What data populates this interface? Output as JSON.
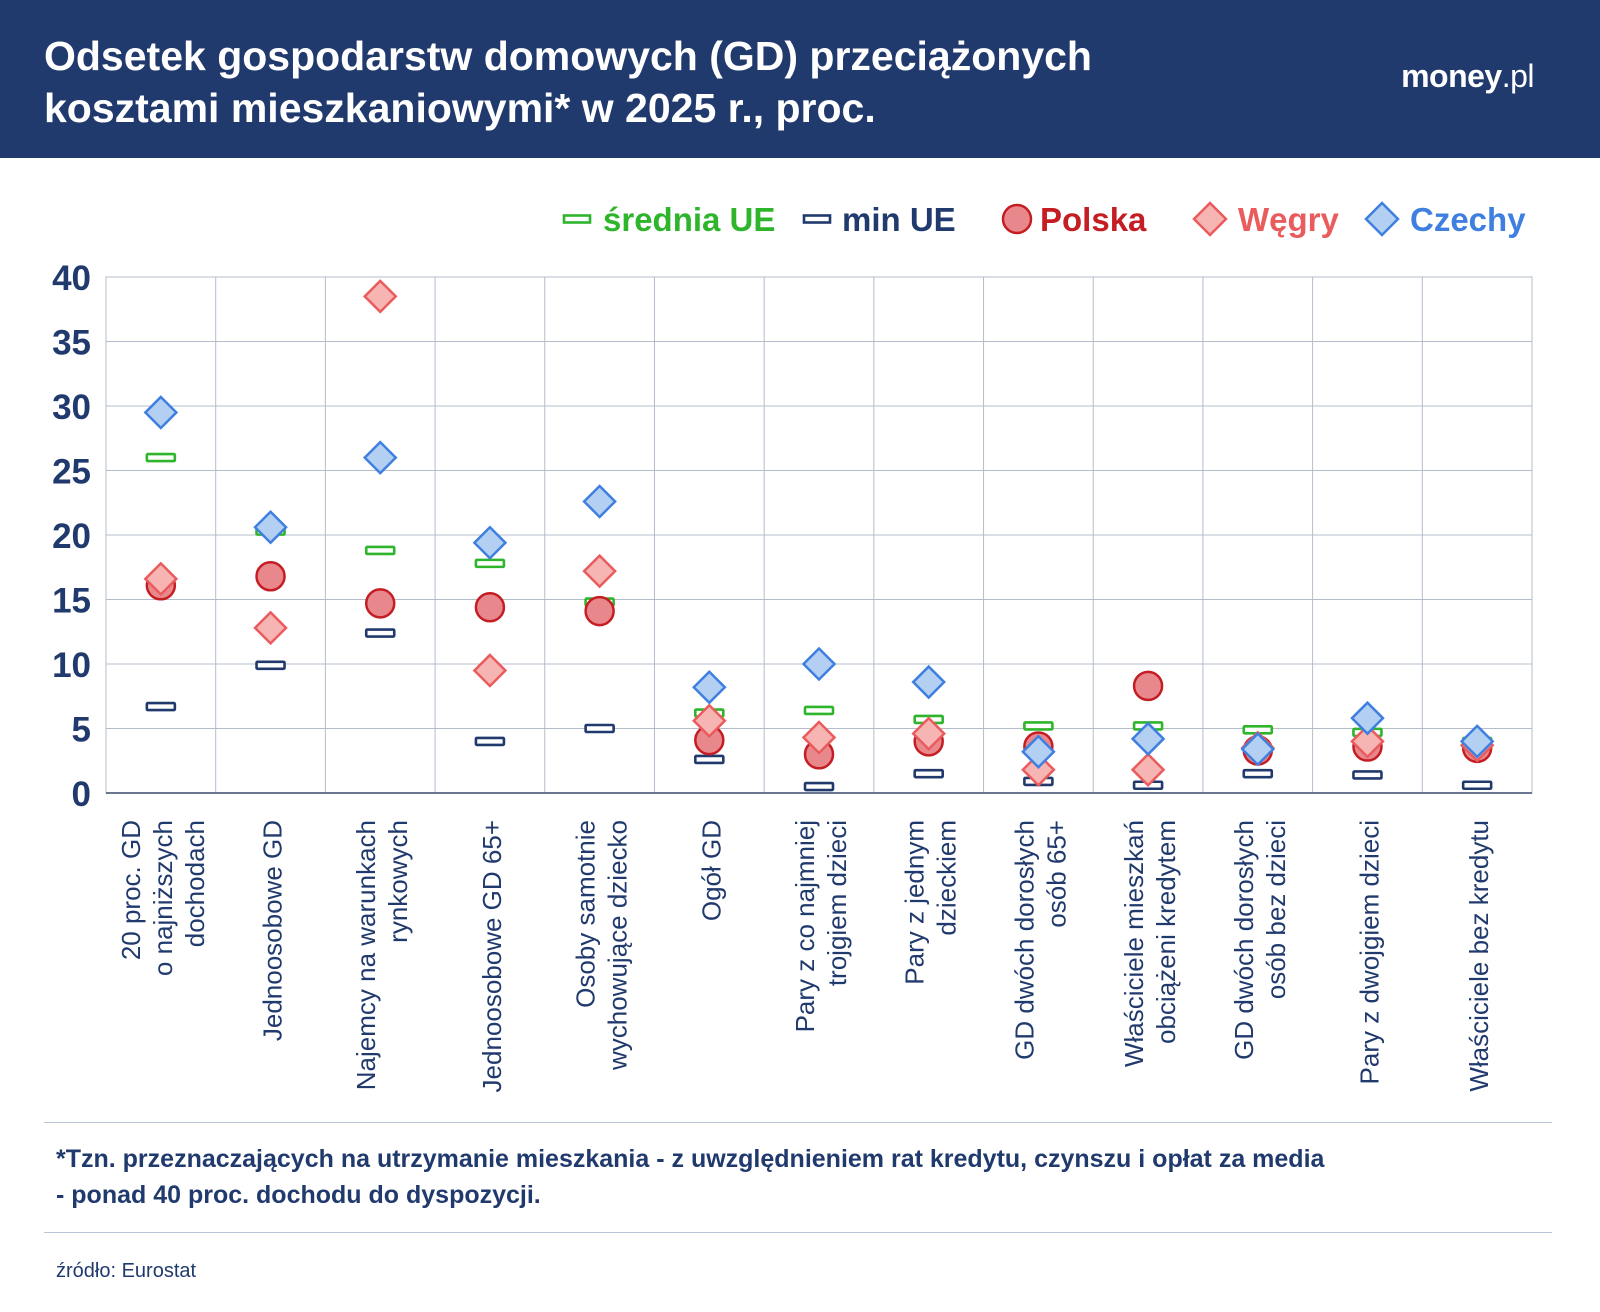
{
  "header": {
    "title_line1": "Odsetek gospodarstw domowych (GD) przeciążonych",
    "title_line2": "kosztami mieszkaniowymi* w 2025 r., proc.",
    "brand_bold": "money",
    "brand_light": ".pl"
  },
  "footnote": {
    "line1": "*Tzn. przeznaczających na utrzymanie mieszkania - z uwzględnieniem rat kredytu, czynszu i opłat za media",
    "line2": "- ponad 40 proc. dochodu do dyspozycji."
  },
  "source": "źródło: Eurostat",
  "colors": {
    "header_bg": "#213a6e",
    "axis_text": "#213a6e",
    "grid": "#b5bccb",
    "avg_eu": "#2fb52b",
    "min_eu": "#213a6e",
    "poland_fill": "#e8888d",
    "poland_stroke": "#c41e24",
    "hungary_fill": "#f6b4b2",
    "hungary_stroke": "#ea5b5d",
    "czechia_fill": "#b3d0f3",
    "czechia_stroke": "#3f7fe0"
  },
  "chart_data": {
    "type": "scatter",
    "title": "Odsetek gospodarstw domowych (GD) przeciążonych kosztami mieszkaniowymi* w 2025 r., proc.",
    "ylim": [
      0,
      40
    ],
    "yticks": [
      0,
      5,
      10,
      15,
      20,
      25,
      30,
      35,
      40
    ],
    "grid": true,
    "legend_position": "top-right",
    "categories": [
      [
        "20 proc. GD",
        "o najniższych",
        "dochodach"
      ],
      [
        "Jednoosobowe GD"
      ],
      [
        "Najemcy na warunkach",
        "rynkowych"
      ],
      [
        "Jednoosobowe GD 65+"
      ],
      [
        "Osoby samotnie",
        "wychowujące dziecko"
      ],
      [
        "Ogół GD"
      ],
      [
        "Pary z co najmniej",
        "trojgiem dzieci"
      ],
      [
        "Pary z jednym",
        "dzieckiem"
      ],
      [
        "GD dwóch dorosłych",
        "osób 65+"
      ],
      [
        "Właściciele mieszkań",
        "obciążeni kredytem"
      ],
      [
        "GD dwóch dorosłych",
        "osób bez dzieci"
      ],
      [
        "Pary z dwojgiem dzieci"
      ],
      [
        "Właściciele bez kredytu"
      ]
    ],
    "series": [
      {
        "name": "średnia UE",
        "marker": "dash",
        "values": [
          26.0,
          20.3,
          18.8,
          17.8,
          14.8,
          6.2,
          6.4,
          5.7,
          5.2,
          5.2,
          4.9,
          4.7,
          4.0
        ]
      },
      {
        "name": "min UE",
        "marker": "dash",
        "values": [
          6.7,
          9.9,
          12.4,
          4.0,
          5.0,
          2.6,
          0.5,
          1.5,
          0.9,
          0.6,
          1.5,
          1.4,
          0.6
        ]
      },
      {
        "name": "Polska",
        "marker": "circle",
        "values": [
          16.1,
          16.8,
          14.7,
          14.4,
          14.1,
          4.1,
          3.0,
          4.0,
          3.6,
          8.3,
          3.3,
          3.6,
          3.5
        ]
      },
      {
        "name": "Węgry",
        "marker": "diamond",
        "values": [
          16.6,
          12.8,
          38.5,
          9.5,
          17.2,
          5.6,
          4.3,
          4.6,
          1.8,
          1.8,
          3.5,
          4.0,
          3.7
        ]
      },
      {
        "name": "Czechy",
        "marker": "diamond",
        "values": [
          29.5,
          20.6,
          26.0,
          19.4,
          22.6,
          8.2,
          10.0,
          8.6,
          3.2,
          4.2,
          3.4,
          5.8,
          4.0
        ]
      }
    ]
  }
}
